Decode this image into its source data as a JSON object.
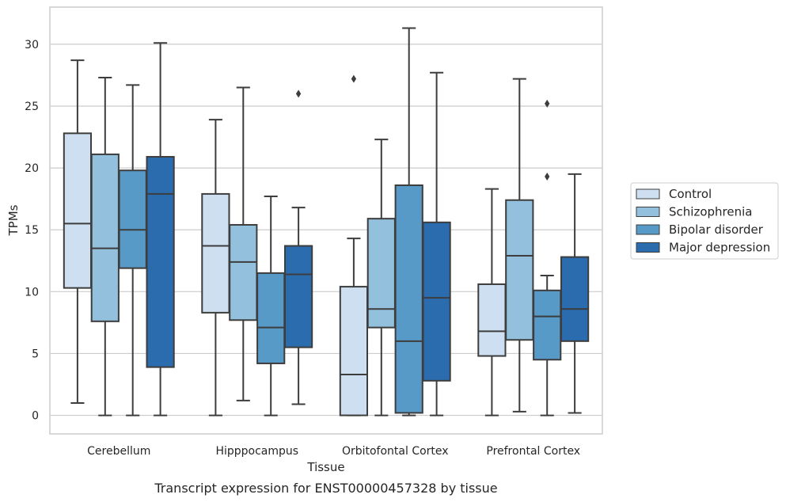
{
  "chart_data": {
    "type": "box",
    "title": "",
    "caption": "Transcript expression for ENST00000457328 by tissue",
    "xlabel": "Tissue",
    "ylabel": "TPMs",
    "ylim": [
      -1.5,
      33
    ],
    "yticks": [
      0,
      5,
      10,
      15,
      20,
      25,
      30
    ],
    "grid": "horizontal",
    "legend_position": "right",
    "categories": [
      "Cerebellum",
      "Hipppocampus",
      "Orbitofontal Cortex",
      "Prefrontal Cortex"
    ],
    "series": [
      {
        "name": "Control",
        "color": "#cddff0",
        "boxes": [
          {
            "whisker_low": 1.0,
            "q1": 10.3,
            "median": 15.5,
            "q3": 22.8,
            "whisker_high": 28.7,
            "outliers": []
          },
          {
            "whisker_low": 0.0,
            "q1": 8.3,
            "median": 13.7,
            "q3": 17.9,
            "whisker_high": 23.9,
            "outliers": []
          },
          {
            "whisker_low": 0.0,
            "q1": 0.0,
            "median": 3.3,
            "q3": 10.4,
            "whisker_high": 14.3,
            "outliers": [
              27.2
            ]
          },
          {
            "whisker_low": 0.0,
            "q1": 4.8,
            "median": 6.8,
            "q3": 10.6,
            "whisker_high": 18.3,
            "outliers": []
          }
        ]
      },
      {
        "name": "Schizophrenia",
        "color": "#93c0dc",
        "boxes": [
          {
            "whisker_low": 0.0,
            "q1": 7.6,
            "median": 13.5,
            "q3": 21.1,
            "whisker_high": 27.3,
            "outliers": []
          },
          {
            "whisker_low": 1.2,
            "q1": 7.7,
            "median": 12.4,
            "q3": 15.4,
            "whisker_high": 26.5,
            "outliers": []
          },
          {
            "whisker_low": 0.0,
            "q1": 7.1,
            "median": 8.6,
            "q3": 15.9,
            "whisker_high": 22.3,
            "outliers": []
          },
          {
            "whisker_low": 0.3,
            "q1": 6.1,
            "median": 12.9,
            "q3": 17.4,
            "whisker_high": 27.2,
            "outliers": []
          }
        ]
      },
      {
        "name": "Bipolar disorder",
        "color": "#5799c7",
        "boxes": [
          {
            "whisker_low": 0.0,
            "q1": 11.9,
            "median": 15.0,
            "q3": 19.8,
            "whisker_high": 26.7,
            "outliers": []
          },
          {
            "whisker_low": 0.0,
            "q1": 4.2,
            "median": 7.1,
            "q3": 11.5,
            "whisker_high": 17.7,
            "outliers": []
          },
          {
            "whisker_low": 0.0,
            "q1": 0.2,
            "median": 6.0,
            "q3": 18.6,
            "whisker_high": 31.3,
            "outliers": []
          },
          {
            "whisker_low": 0.0,
            "q1": 4.5,
            "median": 8.0,
            "q3": 10.1,
            "whisker_high": 11.3,
            "outliers": [
              19.3,
              25.2
            ]
          }
        ]
      },
      {
        "name": "Major depression",
        "color": "#2b6cae",
        "boxes": [
          {
            "whisker_low": 0.0,
            "q1": 3.9,
            "median": 17.9,
            "q3": 20.9,
            "whisker_high": 30.1,
            "outliers": []
          },
          {
            "whisker_low": 0.9,
            "q1": 5.5,
            "median": 11.4,
            "q3": 13.7,
            "whisker_high": 16.8,
            "outliers": [
              26.0
            ]
          },
          {
            "whisker_low": 0.0,
            "q1": 2.8,
            "median": 9.5,
            "q3": 15.6,
            "whisker_high": 27.7,
            "outliers": []
          },
          {
            "whisker_low": 0.2,
            "q1": 6.0,
            "median": 8.6,
            "q3": 12.8,
            "whisker_high": 19.5,
            "outliers": []
          }
        ]
      }
    ]
  }
}
